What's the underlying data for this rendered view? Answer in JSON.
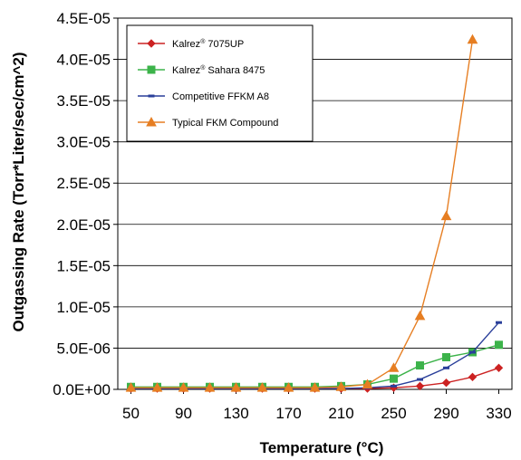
{
  "chart_data": {
    "type": "line",
    "xlabel": "Temperature (°C)",
    "ylabel": "Outgassing Rate (Torr*Liter/sec/cm^2)",
    "xlim": [
      40,
      340
    ],
    "ylim": [
      0,
      4.5e-05
    ],
    "x_ticks": [
      "50",
      "90",
      "130",
      "170",
      "210",
      "250",
      "290",
      "330"
    ],
    "y_ticks": [
      "0.0E+00",
      "5.0E-06",
      "1.0E-05",
      "1.5E-05",
      "2.0E-05",
      "2.5E-05",
      "3.0E-05",
      "3.5E-05",
      "4.0E-05",
      "4.5E-05"
    ],
    "grid": "horizontal",
    "legend_position": "top-left",
    "x": [
      50,
      70,
      90,
      110,
      130,
      150,
      170,
      190,
      210,
      230,
      250,
      270,
      290,
      310,
      330
    ],
    "series": [
      {
        "name_main": "Kalrez",
        "name_sup": "®",
        "name_rest": " 7075UP",
        "color": "#cc2222",
        "marker": "diamond",
        "x": [
          50,
          70,
          90,
          110,
          130,
          150,
          170,
          190,
          210,
          230,
          250,
          270,
          290,
          310,
          330
        ],
        "values": [
          1e-07,
          1e-07,
          1e-07,
          1e-07,
          1e-07,
          1e-07,
          1e-07,
          1e-07,
          1e-07,
          1e-07,
          2e-07,
          4e-07,
          8e-07,
          1.5e-06,
          2.6e-06
        ]
      },
      {
        "name_main": "Kalrez",
        "name_sup": "®",
        "name_rest": " Sahara 8475",
        "color": "#3cb34a",
        "marker": "square",
        "x": [
          50,
          70,
          90,
          110,
          130,
          150,
          170,
          190,
          210,
          230,
          250,
          270,
          290,
          310,
          330
        ],
        "values": [
          3e-07,
          3e-07,
          3e-07,
          3e-07,
          3e-07,
          3e-07,
          3e-07,
          3e-07,
          4e-07,
          6e-07,
          1.3e-06,
          2.9e-06,
          3.9e-06,
          4.5e-06,
          5.4e-06
        ]
      },
      {
        "name_main": "Competitive FFKM A8",
        "name_sup": "",
        "name_rest": "",
        "color": "#2a3f9a",
        "marker": "dash",
        "x": [
          50,
          70,
          90,
          110,
          130,
          150,
          170,
          190,
          210,
          230,
          250,
          270,
          290,
          310,
          330
        ],
        "values": [
          1e-07,
          1e-07,
          1e-07,
          1e-07,
          1e-07,
          1e-07,
          1e-07,
          1e-07,
          1e-07,
          2e-07,
          4e-07,
          1.2e-06,
          2.6e-06,
          4.5e-06,
          8.1e-06
        ]
      },
      {
        "name_main": "Typical FKM Compound",
        "name_sup": "",
        "name_rest": "",
        "color": "#e67e22",
        "marker": "triangle",
        "x": [
          50,
          70,
          90,
          110,
          130,
          150,
          170,
          190,
          210,
          230,
          250,
          270,
          290,
          310
        ],
        "values": [
          2e-07,
          2e-07,
          2e-07,
          2e-07,
          2e-07,
          2e-07,
          2e-07,
          2e-07,
          3e-07,
          6e-07,
          2.6e-06,
          8.9e-06,
          2.1e-05,
          4.24e-05
        ]
      }
    ]
  }
}
